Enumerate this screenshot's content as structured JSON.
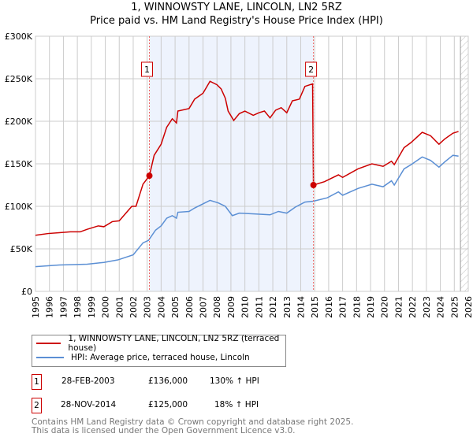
{
  "title": "1, WINNOWSTY LANE, LINCOLN, LN2 5RZ",
  "subtitle": "Price paid vs. HM Land Registry's House Price Index (HPI)",
  "colors": {
    "property": "#cc0000",
    "hpi": "#5b8fd4",
    "shade": "#eef3fd"
  },
  "chart_data": {
    "type": "line",
    "xlim": [
      1995,
      2026
    ],
    "ylim": [
      0,
      300000
    ],
    "x_ticks": [
      "1995",
      "1996",
      "1997",
      "1998",
      "1999",
      "2000",
      "2001",
      "2002",
      "2003",
      "2004",
      "2005",
      "2006",
      "2007",
      "2008",
      "2009",
      "2010",
      "2011",
      "2012",
      "2013",
      "2014",
      "2015",
      "2016",
      "2017",
      "2018",
      "2019",
      "2020",
      "2021",
      "2022",
      "2023",
      "2024",
      "2025",
      "2026"
    ],
    "y_ticks": [
      {
        "v": 0,
        "label": "£0"
      },
      {
        "v": 50000,
        "label": "£50K"
      },
      {
        "v": 100000,
        "label": "£100K"
      },
      {
        "v": 150000,
        "label": "£150K"
      },
      {
        "v": 200000,
        "label": "£200K"
      },
      {
        "v": 250000,
        "label": "£250K"
      },
      {
        "v": 300000,
        "label": "£300K"
      }
    ],
    "grid": true,
    "shaded_period": [
      2003.16,
      2014.91
    ],
    "forecast_hatch_from": 2025.44,
    "series": [
      {
        "name": "1, WINNOWSTY LANE, LINCOLN, LN2 5RZ (terraced house)",
        "points": [
          [
            1995.0,
            66000
          ],
          [
            1995.9,
            68000
          ],
          [
            1996.7,
            69000
          ],
          [
            1997.5,
            70000
          ],
          [
            1998.2,
            70000
          ],
          [
            1998.7,
            73000
          ],
          [
            1999.5,
            77000
          ],
          [
            1999.9,
            76000
          ],
          [
            2000.5,
            82000
          ],
          [
            2001.0,
            83000
          ],
          [
            2001.9,
            100000
          ],
          [
            2002.2,
            100000
          ],
          [
            2002.7,
            126000
          ],
          [
            2003.16,
            136000
          ],
          [
            2003.5,
            160000
          ],
          [
            2004.0,
            173000
          ],
          [
            2004.4,
            193000
          ],
          [
            2004.8,
            203000
          ],
          [
            2005.1,
            198000
          ],
          [
            2005.2,
            212000
          ],
          [
            2006.0,
            215000
          ],
          [
            2006.4,
            226000
          ],
          [
            2007.0,
            233000
          ],
          [
            2007.5,
            247000
          ],
          [
            2008.0,
            243000
          ],
          [
            2008.3,
            238000
          ],
          [
            2008.6,
            227000
          ],
          [
            2008.8,
            212000
          ],
          [
            2009.2,
            201000
          ],
          [
            2009.6,
            209000
          ],
          [
            2010.0,
            212000
          ],
          [
            2010.6,
            207000
          ],
          [
            2011.0,
            210000
          ],
          [
            2011.4,
            212000
          ],
          [
            2011.8,
            204000
          ],
          [
            2012.2,
            213000
          ],
          [
            2012.6,
            216000
          ],
          [
            2013.0,
            210000
          ],
          [
            2013.4,
            224000
          ],
          [
            2013.9,
            226000
          ],
          [
            2014.3,
            241000
          ],
          [
            2014.85,
            244000
          ],
          [
            2014.91,
            125000
          ],
          [
            2015.7,
            129000
          ],
          [
            2016.7,
            137000
          ],
          [
            2017.0,
            134000
          ],
          [
            2018.1,
            144000
          ],
          [
            2019.1,
            150000
          ],
          [
            2019.9,
            147000
          ],
          [
            2020.5,
            153000
          ],
          [
            2020.7,
            149000
          ],
          [
            2021.4,
            169000
          ],
          [
            2021.9,
            175000
          ],
          [
            2022.7,
            187000
          ],
          [
            2023.3,
            183000
          ],
          [
            2023.9,
            173000
          ],
          [
            2024.3,
            179000
          ],
          [
            2024.9,
            186000
          ],
          [
            2025.3,
            188000
          ]
        ]
      },
      {
        "name": "HPI: Average price, terraced house, Lincoln",
        "points": [
          [
            1995.0,
            29000
          ],
          [
            1996.7,
            31000
          ],
          [
            1998.7,
            32000
          ],
          [
            1999.9,
            34000
          ],
          [
            2000.9,
            37000
          ],
          [
            2002.0,
            43000
          ],
          [
            2002.7,
            57000
          ],
          [
            2003.1,
            60000
          ],
          [
            2003.6,
            72000
          ],
          [
            2004.0,
            77000
          ],
          [
            2004.4,
            86000
          ],
          [
            2004.8,
            89000
          ],
          [
            2005.1,
            86000
          ],
          [
            2005.2,
            93000
          ],
          [
            2006.0,
            94000
          ],
          [
            2006.4,
            98000
          ],
          [
            2007.5,
            107000
          ],
          [
            2008.1,
            104000
          ],
          [
            2008.6,
            100000
          ],
          [
            2009.1,
            89000
          ],
          [
            2009.6,
            92000
          ],
          [
            2010.8,
            91000
          ],
          [
            2011.8,
            90000
          ],
          [
            2012.4,
            94000
          ],
          [
            2013.0,
            92000
          ],
          [
            2013.6,
            99000
          ],
          [
            2014.3,
            105000
          ],
          [
            2014.9,
            106000
          ],
          [
            2015.9,
            110000
          ],
          [
            2016.7,
            117000
          ],
          [
            2017.0,
            113000
          ],
          [
            2018.1,
            121000
          ],
          [
            2019.1,
            126000
          ],
          [
            2019.9,
            123000
          ],
          [
            2020.5,
            130000
          ],
          [
            2020.7,
            125000
          ],
          [
            2021.4,
            144000
          ],
          [
            2021.9,
            149000
          ],
          [
            2022.7,
            158000
          ],
          [
            2023.3,
            154000
          ],
          [
            2023.9,
            146000
          ],
          [
            2024.3,
            152000
          ],
          [
            2024.9,
            160000
          ],
          [
            2025.3,
            159000
          ]
        ]
      }
    ],
    "sales": [
      {
        "label": "1",
        "x": 2003.16,
        "y": 136000
      },
      {
        "label": "2",
        "x": 2014.91,
        "y": 125000
      }
    ]
  },
  "legend": {
    "property": "1, WINNOWSTY LANE, LINCOLN, LN2 5RZ (terraced house)",
    "hpi": "HPI: Average price, terraced house, Lincoln"
  },
  "transactions": [
    {
      "num": "1",
      "date": "28-FEB-2003",
      "price": "£136,000",
      "hpi": "130% ↑ HPI"
    },
    {
      "num": "2",
      "date": "28-NOV-2014",
      "price": "£125,000",
      "hpi": "18% ↑ HPI"
    }
  ],
  "footer": {
    "line1": "Contains HM Land Registry data © Crown copyright and database right 2025.",
    "line2": "This data is licensed under the Open Government Licence v3.0."
  }
}
